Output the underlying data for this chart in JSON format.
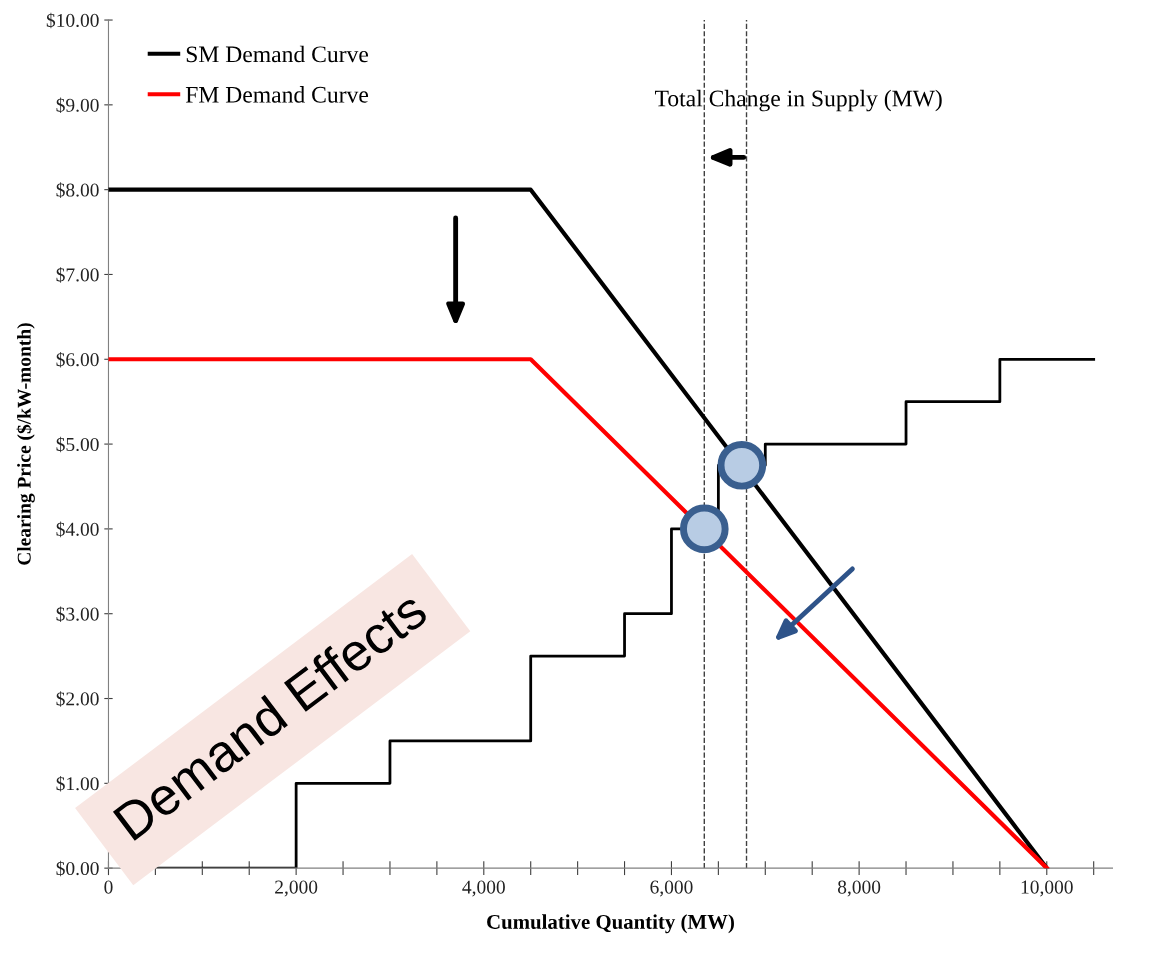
{
  "chart_data": {
    "type": "line",
    "xlabel": "Cumulative Quantity (MW)",
    "ylabel": "Clearing Price ($/kW-month)",
    "series": [
      {
        "name": "SM Demand Curve",
        "color": "#000000",
        "x": [
          0,
          4500,
          10000
        ],
        "values": [
          8,
          8,
          0
        ]
      },
      {
        "name": "FM Demand Curve",
        "color": "#ff0000",
        "x": [
          0,
          4500,
          10000
        ],
        "values": [
          6,
          6,
          0
        ]
      },
      {
        "type": "step",
        "color": "#000000",
        "x": [
          500,
          2000,
          3000,
          4500,
          5500,
          6000,
          6500,
          7000,
          8500,
          9500,
          10500
        ],
        "values": [
          0,
          1,
          1.5,
          2.5,
          3,
          4,
          4.75,
          5,
          5.5,
          6,
          6
        ]
      },
      {
        "type": "scatter",
        "marker": "circle",
        "color": "#3a5f8f",
        "x": [
          6350,
          6750
        ],
        "values": [
          4.0,
          4.75
        ]
      }
    ],
    "xlim": [
      0,
      10700
    ],
    "ylim": [
      0,
      10
    ],
    "xticks": [
      0,
      {
        "value": 500,
        "label": null
      },
      {
        "value": 1000,
        "label": null
      },
      {
        "value": 1500,
        "label": null
      },
      {
        "value": 2000,
        "label": "2,000"
      },
      {
        "value": 2500,
        "label": null
      },
      {
        "value": 3000,
        "label": null
      },
      {
        "value": 3500,
        "label": null
      },
      {
        "value": 4000,
        "label": "4,000"
      },
      {
        "value": 4500,
        "label": null
      },
      {
        "value": 5000,
        "label": null
      },
      {
        "value": 5500,
        "label": null
      },
      {
        "value": 6000,
        "label": "6,000"
      },
      {
        "value": 6500,
        "label": null
      },
      {
        "value": 7000,
        "label": null
      },
      {
        "value": 7500,
        "label": null
      },
      {
        "value": 8000,
        "label": "8,000"
      },
      {
        "value": 8500,
        "label": null
      },
      {
        "value": 9000,
        "label": null
      },
      {
        "value": 9500,
        "label": null
      },
      {
        "value": 10000,
        "label": "10,000"
      },
      {
        "value": 10500,
        "label": null
      }
    ],
    "yticks": [
      {
        "value": 0,
        "label": "$0.00"
      },
      {
        "value": 1,
        "label": "$1.00"
      },
      {
        "value": 2,
        "label": "$2.00"
      },
      {
        "value": 3,
        "label": "$3.00"
      },
      {
        "value": 4,
        "label": "$4.00"
      },
      {
        "value": 5,
        "label": "$5.00"
      },
      {
        "value": 6,
        "label": "$6.00"
      },
      {
        "value": 7,
        "label": "$7.00"
      },
      {
        "value": 8,
        "label": "$8.00"
      },
      {
        "value": 9,
        "label": "$9.00"
      },
      {
        "value": 10,
        "label": "$10.00"
      }
    ],
    "ref_lines": [
      {
        "axis": "x",
        "value": 6350,
        "color": "#404040",
        "line_style": "dashed"
      },
      {
        "axis": "x",
        "value": 6800,
        "color": "#404040",
        "line_style": "dashed"
      }
    ],
    "annotations": [
      "Total Change in Supply (MW)",
      "Demand Effects"
    ],
    "legend": "top left",
    "grid": false,
    "marker": "none",
    "line_style": "solid"
  }
}
